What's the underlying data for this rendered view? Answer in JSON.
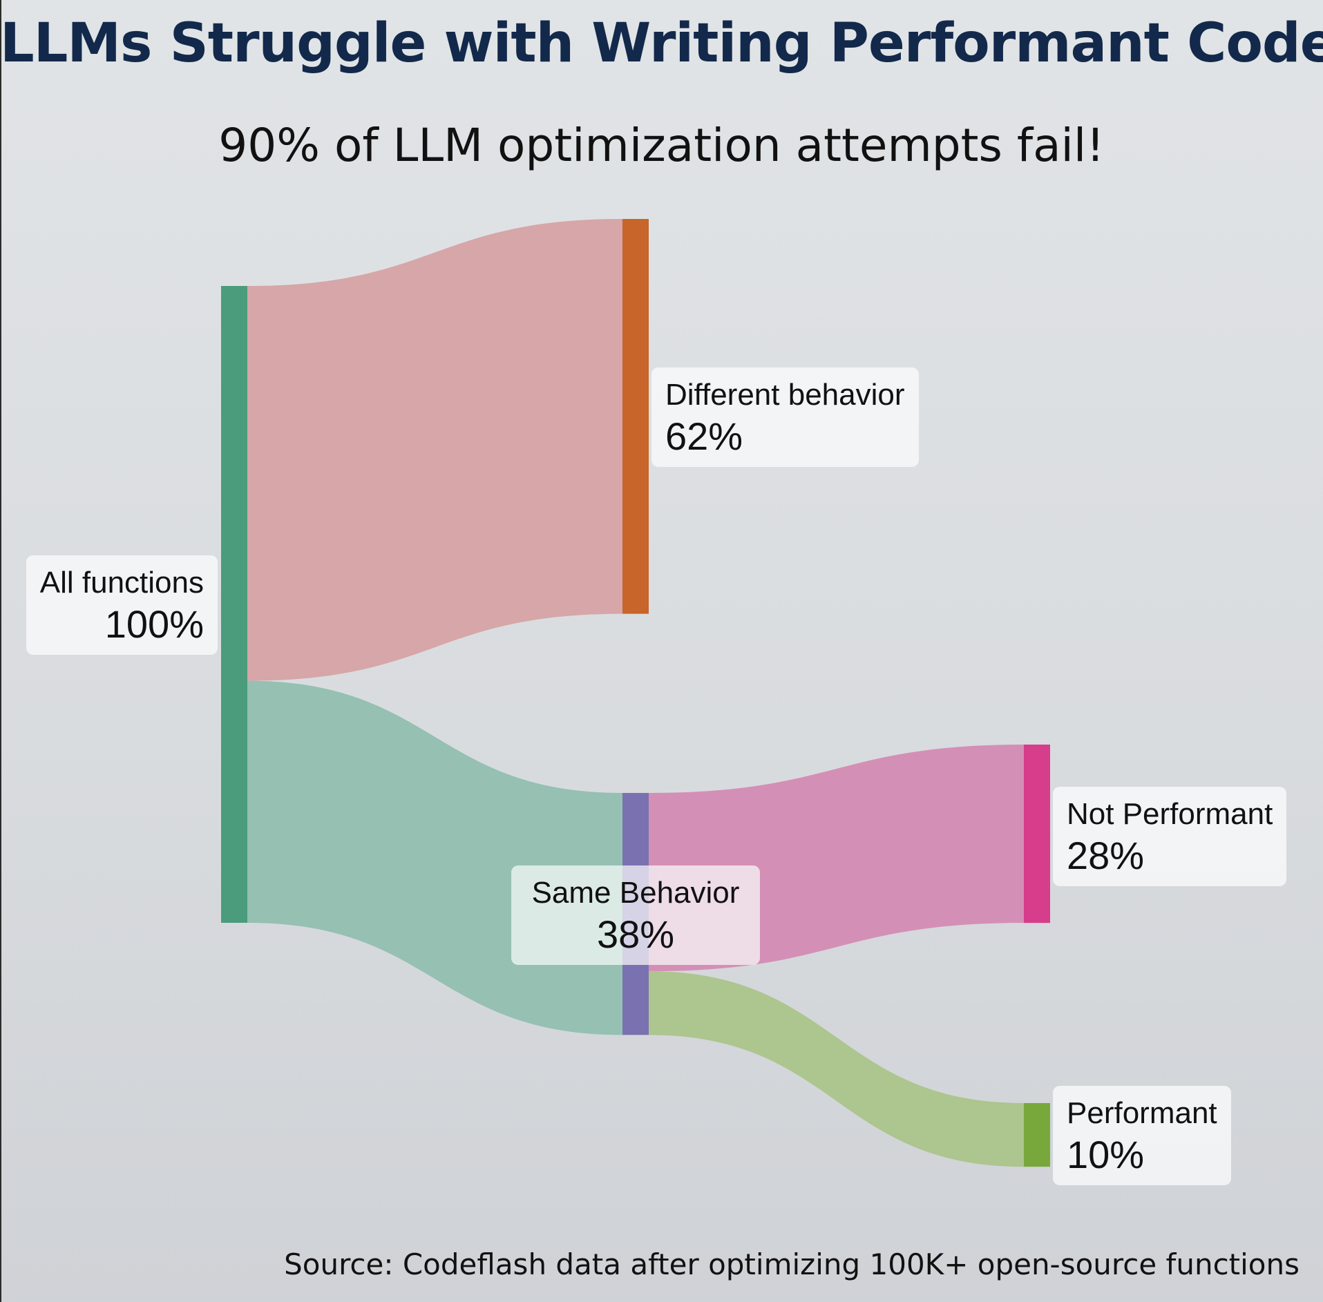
{
  "title": "LLMs Struggle with Writing Performant Code",
  "subtitle": "90% of LLM optimization attempts fail!",
  "source": "Source: Codeflash data after optimizing 100K+ open-source functions",
  "chart_data": {
    "type": "sankey",
    "unit": "%",
    "nodes": [
      {
        "id": "all",
        "label": "All functions",
        "value": 100,
        "value_text": "100%",
        "color": "#4a9c7c"
      },
      {
        "id": "different",
        "label": "Different behavior",
        "value": 62,
        "value_text": "62%",
        "color": "#c8652a"
      },
      {
        "id": "same",
        "label": "Same Behavior",
        "value": 38,
        "value_text": "38%",
        "color": "#7a71b0"
      },
      {
        "id": "not_performant",
        "label": "Not Performant",
        "value": 28,
        "value_text": "28%",
        "color": "#d63d8a"
      },
      {
        "id": "performant",
        "label": "Performant",
        "value": 10,
        "value_text": "10%",
        "color": "#78a83c"
      }
    ],
    "links": [
      {
        "source": "all",
        "target": "different",
        "value": 62,
        "color": "#d6a6a8"
      },
      {
        "source": "all",
        "target": "same",
        "value": 38,
        "color": "#95c0b2"
      },
      {
        "source": "same",
        "target": "not_performant",
        "value": 28,
        "color": "#d48fb6"
      },
      {
        "source": "same",
        "target": "performant",
        "value": 10,
        "color": "#adc58e"
      }
    ]
  }
}
